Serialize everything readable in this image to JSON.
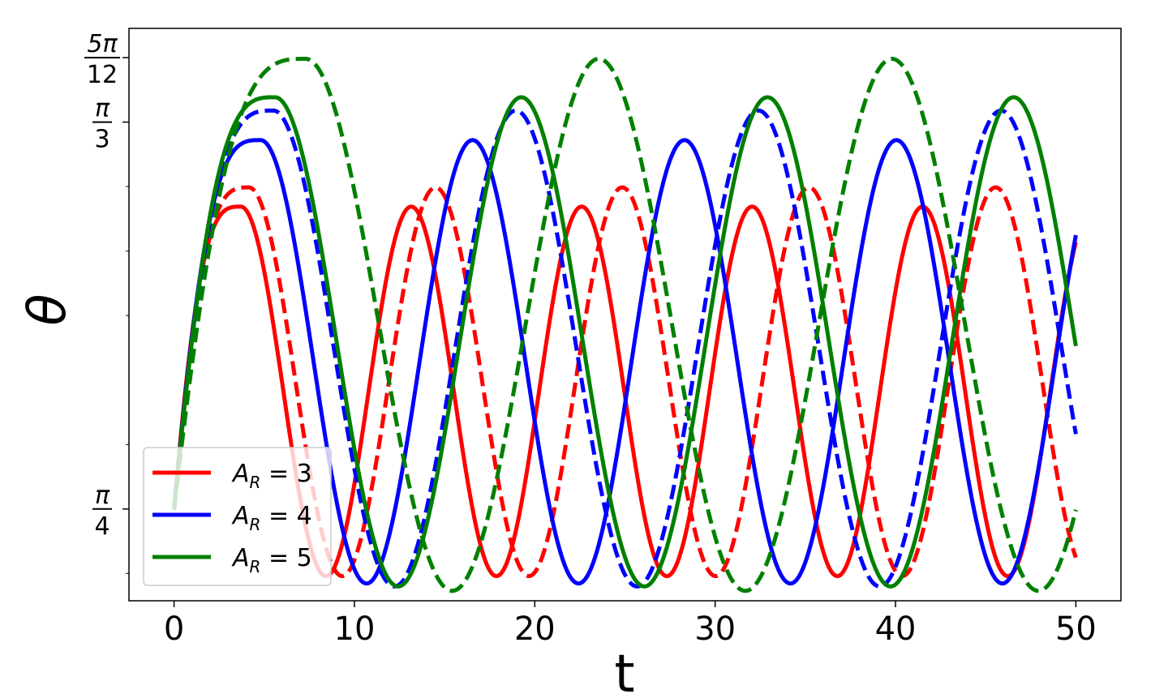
{
  "chart_data": {
    "type": "line",
    "xlabel": "t",
    "ylabel": "θ",
    "xlim": [
      -2.5,
      52.5
    ],
    "ylim": [
      0.7233,
      1.1106
    ],
    "x_ticks": [
      {
        "value": 0,
        "label": "0"
      },
      {
        "value": 10,
        "label": "10"
      },
      {
        "value": 20,
        "label": "20"
      },
      {
        "value": 30,
        "label": "30"
      },
      {
        "value": 40,
        "label": "40"
      },
      {
        "value": 50,
        "label": "50"
      }
    ],
    "y_ticks": [
      {
        "value": 0.7854,
        "num": "π",
        "den": "4"
      },
      {
        "value": 1.0472,
        "num": "π",
        "den": "3"
      },
      {
        "value": 1.0908,
        "num": "5π",
        "den": "12"
      }
    ],
    "y_minor_ticks": [
      0.7418,
      0.829,
      0.9163,
      0.9599,
      1.0036,
      1.1345
    ],
    "grid": false,
    "legend": {
      "position": "lower-left",
      "entries": [
        {
          "label_main": "A",
          "label_sub": "R",
          "label_rest": " = 3",
          "color": "#ff0000"
        },
        {
          "label_main": "A",
          "label_sub": "R",
          "label_rest": " = 4",
          "color": "#0000ff"
        },
        {
          "label_main": "A",
          "label_sub": "R",
          "label_rest": " = 5",
          "color": "#008000"
        }
      ]
    },
    "series": [
      {
        "color": "#ff0000",
        "style": "solid",
        "t_start": 0,
        "t_end": 50,
        "period": 9.45,
        "t_max": 3.7,
        "theta_start": 0.785,
        "theta_max": 0.99,
        "theta_min": 0.74
      },
      {
        "color": "#ff0000",
        "style": "dashed",
        "t_start": 0,
        "t_end": 50,
        "period": 10.35,
        "t_max": 4.15,
        "theta_start": 0.785,
        "theta_max": 1.003,
        "theta_min": 0.74
      },
      {
        "color": "#0000ff",
        "style": "solid",
        "t_start": 0,
        "t_end": 50,
        "period": 11.75,
        "t_max": 4.8,
        "theta_start": 0.785,
        "theta_max": 1.035,
        "theta_min": 0.735
      },
      {
        "color": "#0000ff",
        "style": "dashed",
        "t_start": 0,
        "t_end": 50,
        "period": 13.45,
        "t_max": 5.5,
        "theta_start": 0.785,
        "theta_max": 1.055,
        "theta_min": 0.733
      },
      {
        "color": "#008000",
        "style": "solid",
        "t_start": 0,
        "t_end": 50,
        "period": 13.65,
        "t_max": 5.6,
        "theta_start": 0.785,
        "theta_max": 1.064,
        "theta_min": 0.733
      },
      {
        "color": "#008000",
        "style": "dashed",
        "t_start": 0,
        "t_end": 50,
        "period": 16.25,
        "t_max": 7.3,
        "theta_start": 0.785,
        "theta_max": 1.09,
        "theta_min": 0.73
      }
    ]
  }
}
